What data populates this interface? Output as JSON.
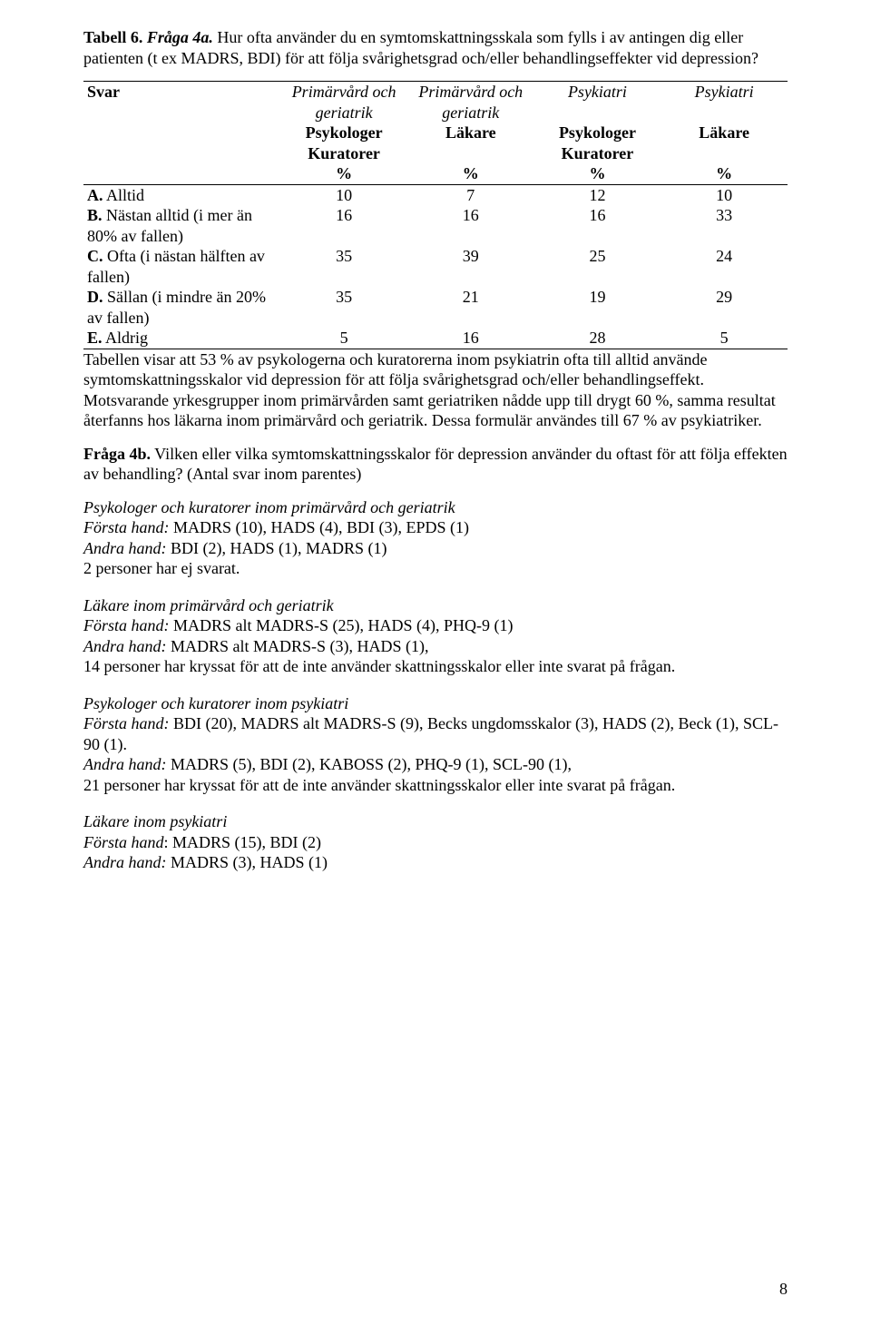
{
  "title": {
    "tablenum": "Tabell 6.",
    "fraga": "Fråga 4a.",
    "question": "Hur ofta använder du en symtomskattningsskala som fylls i av antingen dig eller patienten (t ex MADRS, BDI) för att följa svårighetsgrad och/eller behandlingseffekter vid depression?"
  },
  "table": {
    "svar_label": "Svar",
    "head_row1": [
      "Primärvård och geriatrik",
      "Primärvård och geriatrik",
      "Psykiatri",
      "Psykiatri"
    ],
    "head_row2": [
      "Psykologer Kuratorer",
      "Läkare",
      "Psykologer Kuratorer",
      "Läkare"
    ],
    "pct_row": [
      "%",
      "%",
      "%",
      "%"
    ],
    "rows": [
      {
        "label_b": "A.",
        "label_rest": " Alltid",
        "vals": [
          "10",
          "7",
          "12",
          "10"
        ]
      },
      {
        "label_b": "B.",
        "label_rest": " Nästan alltid (i mer än 80% av fallen)",
        "vals": [
          "16",
          "16",
          "16",
          "33"
        ]
      },
      {
        "label_b": "C.",
        "label_rest": " Ofta (i nästan hälften av fallen)",
        "vals": [
          "35",
          "39",
          "25",
          "24"
        ]
      },
      {
        "label_b": "D.",
        "label_rest": " Sällan (i mindre än 20% av fallen)",
        "vals": [
          "35",
          "21",
          "19",
          "29"
        ]
      },
      {
        "label_b": "E.",
        "label_rest": " Aldrig",
        "vals": [
          "5",
          "16",
          "28",
          "5"
        ]
      }
    ]
  },
  "summary": "Tabellen visar att 53 % av psykologerna och kuratorerna inom psykiatrin ofta till alltid använde symtomskattningsskalor vid depression för att följa svårighetsgrad och/eller behandlingseffekt. Motsvarande yrkesgrupper inom primärvården samt geriatriken nådde upp till drygt 60 %, samma resultat återfanns hos läkarna inom primärvård och geriatrik. Dessa formulär användes till 67 % av psykiatriker.",
  "q4b": {
    "title_b": "Fråga 4b.",
    "title_rest": " Vilken eller vilka symtomskattningsskalor för depression använder du oftast för att följa effekten av behandling? (Antal svar inom parentes)"
  },
  "groups": [
    {
      "heading": "Psykologer och kuratorer inom primärvård och geriatrik",
      "lines": [
        {
          "ital": "Första hand:",
          "rest": " MADRS (10), HADS (4), BDI (3), EPDS (1)"
        },
        {
          "ital": "Andra hand:",
          "rest": " BDI (2), HADS (1), MADRS (1)"
        }
      ],
      "note": "2 personer har ej svarat."
    },
    {
      "heading": "Läkare inom primärvård och geriatrik",
      "lines": [
        {
          "ital": "Första hand:",
          "rest": " MADRS alt MADRS-S (25), HADS (4), PHQ-9 (1)"
        },
        {
          "ital": "Andra hand:",
          "rest": " MADRS alt MADRS-S (3), HADS (1),"
        }
      ],
      "note": "14 personer har kryssat för att de inte använder skattningsskalor eller inte svarat på frågan."
    },
    {
      "heading": "Psykologer och kuratorer inom psykiatri",
      "lines": [
        {
          "ital": "Första hand:",
          "rest": " BDI (20), MADRS alt MADRS-S (9), Becks ungdomsskalor (3), HADS (2), Beck (1), SCL-90 (1)."
        },
        {
          "ital": "Andra hand:",
          "rest": " MADRS (5), BDI (2), KABOSS (2), PHQ-9 (1), SCL-90 (1),"
        }
      ],
      "note": "21 personer har kryssat för att de inte använder skattningsskalor eller inte svarat på frågan."
    },
    {
      "heading": "Läkare inom psykiatri",
      "lines": [
        {
          "ital": "Första hand",
          "rest": ": MADRS (15), BDI (2)"
        },
        {
          "ital": "Andra hand:",
          "rest": " MADRS (3), HADS (1)"
        }
      ],
      "note": ""
    }
  ],
  "pagenum": "8"
}
